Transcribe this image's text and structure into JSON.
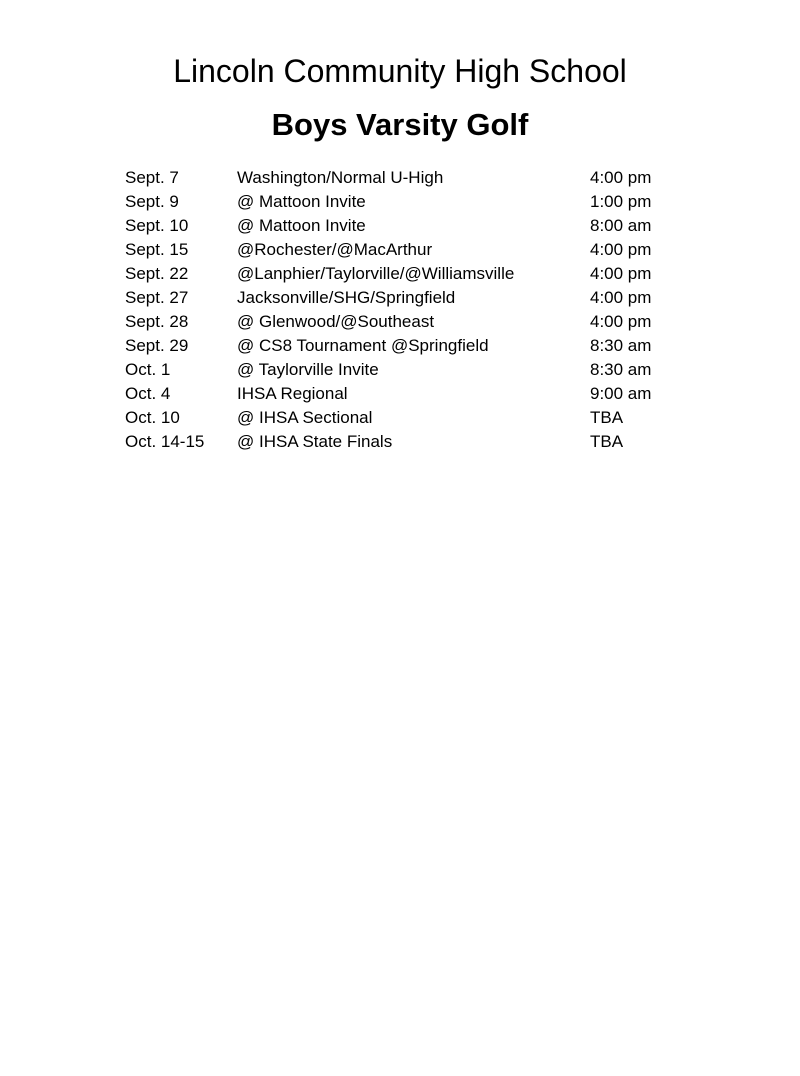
{
  "page": {
    "title": "Lincoln Community High School",
    "subtitle": "Boys Varsity Golf"
  },
  "colors": {
    "text": "#000000",
    "background": "#ffffff"
  },
  "schedule": {
    "rows": [
      {
        "date": "Sept. 7",
        "event": "Washington/Normal U-High",
        "time": "4:00 pm"
      },
      {
        "date": "Sept. 9",
        "event": "@ Mattoon Invite",
        "time": "1:00 pm"
      },
      {
        "date": "Sept. 10",
        "event": "@ Mattoon Invite",
        "time": "8:00 am"
      },
      {
        "date": "Sept. 15",
        "event": "@Rochester/@MacArthur",
        "time": "4:00 pm"
      },
      {
        "date": "Sept. 22",
        "event": "@Lanphier/Taylorville/@Williamsville",
        "time": "4:00 pm"
      },
      {
        "date": "Sept. 27",
        "event": "Jacksonville/SHG/Springfield",
        "time": "4:00 pm"
      },
      {
        "date": "Sept. 28",
        "event": "@ Glenwood/@Southeast",
        "time": "4:00 pm"
      },
      {
        "date": "Sept. 29",
        "event": "@ CS8 Tournament @Springfield",
        "time": "8:30 am"
      },
      {
        "date": "Oct. 1",
        "event": "@ Taylorville Invite",
        "time": "8:30 am"
      },
      {
        "date": "Oct. 4",
        "event": "IHSA Regional",
        "time": "9:00 am"
      },
      {
        "date": "Oct. 10",
        "event": "@ IHSA Sectional",
        "time": "TBA"
      },
      {
        "date": "Oct. 14-15",
        "event": "@ IHSA State Finals",
        "time": "TBA"
      }
    ]
  }
}
